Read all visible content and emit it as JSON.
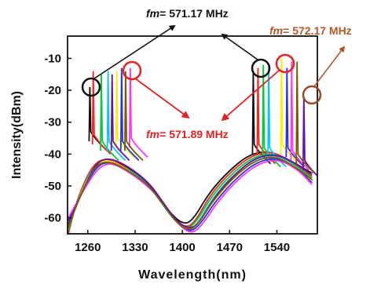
{
  "chart_data": {
    "type": "line",
    "xlabel": "Wavelength(nm)",
    "ylabel": "Intensity(dBm)",
    "xlim": [
      1230,
      1600
    ],
    "ylim": [
      -65,
      -3
    ],
    "xticks": [
      1260,
      1330,
      1400,
      1470,
      1540
    ],
    "yticks": [
      -10,
      -20,
      -30,
      -40,
      -50,
      -60
    ],
    "grid": false,
    "legend": "none",
    "series": [
      {
        "color": "#111111",
        "base_points": [
          [
            1231,
            -65
          ],
          [
            1240,
            -57
          ],
          [
            1260,
            -46
          ],
          [
            1280,
            -41.5
          ],
          [
            1310,
            -43
          ],
          [
            1340,
            -47
          ],
          [
            1360,
            -52
          ],
          [
            1380,
            -58
          ],
          [
            1400,
            -62
          ],
          [
            1415,
            -61
          ],
          [
            1440,
            -52
          ],
          [
            1470,
            -45
          ],
          [
            1500,
            -40
          ],
          [
            1530,
            -39
          ],
          [
            1560,
            -42
          ],
          [
            1592,
            -46
          ]
        ],
        "spikes": [
          [
            1263,
            -19,
            -36
          ],
          [
            1505,
            -14,
            -40
          ]
        ]
      },
      {
        "color": "#ff2020",
        "base_points": [
          [
            1231,
            -65
          ],
          [
            1242,
            -56
          ],
          [
            1262,
            -45
          ],
          [
            1282,
            -41
          ],
          [
            1312,
            -43.5
          ],
          [
            1342,
            -48
          ],
          [
            1362,
            -53
          ],
          [
            1382,
            -59
          ],
          [
            1402,
            -63
          ],
          [
            1417,
            -62
          ],
          [
            1442,
            -52.5
          ],
          [
            1472,
            -45.5
          ],
          [
            1502,
            -40.5
          ],
          [
            1532,
            -39
          ],
          [
            1562,
            -42.5
          ],
          [
            1592,
            -47
          ]
        ],
        "spikes": [
          [
            1268,
            -14,
            -37
          ],
          [
            1512,
            -13,
            -40
          ]
        ]
      },
      {
        "color": "#00cc33",
        "base_points": [
          [
            1231,
            -64
          ],
          [
            1244,
            -55
          ],
          [
            1265,
            -44.5
          ],
          [
            1285,
            -42
          ],
          [
            1315,
            -44
          ],
          [
            1345,
            -48.5
          ],
          [
            1365,
            -54
          ],
          [
            1385,
            -60
          ],
          [
            1404,
            -63.5
          ],
          [
            1419,
            -62
          ],
          [
            1444,
            -53
          ],
          [
            1474,
            -46
          ],
          [
            1504,
            -41
          ],
          [
            1534,
            -39.5
          ],
          [
            1564,
            -43
          ],
          [
            1592,
            -47.5
          ]
        ],
        "spikes": [
          [
            1280,
            -15,
            -39
          ],
          [
            1520,
            -12,
            -41
          ]
        ]
      },
      {
        "color": "#00c8ff",
        "base_points": [
          [
            1231,
            -63
          ],
          [
            1246,
            -54
          ],
          [
            1267,
            -44
          ],
          [
            1287,
            -42.5
          ],
          [
            1317,
            -44.5
          ],
          [
            1347,
            -49
          ],
          [
            1367,
            -54.5
          ],
          [
            1387,
            -60.5
          ],
          [
            1406,
            -64
          ],
          [
            1421,
            -62.5
          ],
          [
            1446,
            -53.5
          ],
          [
            1476,
            -46.5
          ],
          [
            1506,
            -41.5
          ],
          [
            1536,
            -40
          ],
          [
            1566,
            -43.5
          ],
          [
            1592,
            -48
          ]
        ],
        "spikes": [
          [
            1290,
            -14,
            -39
          ],
          [
            1528,
            -12,
            -41
          ]
        ]
      },
      {
        "color": "#ffee00",
        "base_points": [
          [
            1231,
            -62
          ],
          [
            1248,
            -53
          ],
          [
            1270,
            -43.5
          ],
          [
            1290,
            -41.5
          ],
          [
            1320,
            -45
          ],
          [
            1350,
            -50
          ],
          [
            1370,
            -55
          ],
          [
            1390,
            -61
          ],
          [
            1408,
            -64
          ],
          [
            1423,
            -62
          ],
          [
            1448,
            -54
          ],
          [
            1478,
            -47
          ],
          [
            1508,
            -42
          ],
          [
            1538,
            -40.5
          ],
          [
            1568,
            -44
          ],
          [
            1592,
            -48.5
          ]
        ],
        "spikes": [
          [
            1303,
            -14,
            -38
          ],
          [
            1547,
            -10,
            -40
          ]
        ]
      },
      {
        "color": "#2233ee",
        "base_points": [
          [
            1231,
            -61
          ],
          [
            1250,
            -52.5
          ],
          [
            1272,
            -44
          ],
          [
            1292,
            -42
          ],
          [
            1322,
            -45.5
          ],
          [
            1352,
            -50.5
          ],
          [
            1372,
            -55.5
          ],
          [
            1392,
            -61.5
          ],
          [
            1410,
            -64.5
          ],
          [
            1425,
            -62.5
          ],
          [
            1450,
            -54.5
          ],
          [
            1480,
            -47.5
          ],
          [
            1510,
            -42.5
          ],
          [
            1540,
            -41
          ],
          [
            1570,
            -44.5
          ],
          [
            1592,
            -49
          ]
        ],
        "spikes": [
          [
            1310,
            -13,
            -39
          ],
          [
            1555,
            -13,
            -41
          ]
        ]
      },
      {
        "color": "#ff33ff",
        "base_points": [
          [
            1231,
            -60
          ],
          [
            1252,
            -52
          ],
          [
            1274,
            -44.5
          ],
          [
            1294,
            -42.5
          ],
          [
            1324,
            -46
          ],
          [
            1354,
            -51
          ],
          [
            1374,
            -56
          ],
          [
            1394,
            -62
          ],
          [
            1412,
            -65
          ],
          [
            1427,
            -63
          ],
          [
            1452,
            -55
          ],
          [
            1482,
            -48
          ],
          [
            1512,
            -43
          ],
          [
            1542,
            -41.5
          ],
          [
            1572,
            -45
          ],
          [
            1592,
            -49.5
          ]
        ],
        "spikes": [
          [
            1323,
            -13,
            -38
          ],
          [
            1562,
            -11,
            -42
          ]
        ]
      },
      {
        "color": "#6a0dad",
        "base_points": [
          [
            1231,
            -62
          ],
          [
            1249,
            -53
          ],
          [
            1271,
            -43
          ],
          [
            1291,
            -41
          ],
          [
            1321,
            -44
          ],
          [
            1351,
            -49
          ],
          [
            1371,
            -55
          ],
          [
            1391,
            -61
          ],
          [
            1409,
            -63.5
          ],
          [
            1424,
            -62
          ],
          [
            1449,
            -53
          ],
          [
            1479,
            -46
          ],
          [
            1509,
            -41
          ],
          [
            1539,
            -40
          ],
          [
            1569,
            -43
          ],
          [
            1592,
            -46.5
          ]
        ],
        "spikes": [
          [
            1296,
            -15,
            -39
          ],
          [
            1580,
            -22,
            -45
          ]
        ]
      },
      {
        "color": "#7a5a00",
        "base_points": [
          [
            1231,
            -63
          ],
          [
            1247,
            -54
          ],
          [
            1269,
            -44
          ],
          [
            1289,
            -42
          ],
          [
            1319,
            -45
          ],
          [
            1349,
            -49.5
          ],
          [
            1369,
            -55
          ],
          [
            1389,
            -61
          ],
          [
            1407,
            -64
          ],
          [
            1422,
            -62.5
          ],
          [
            1447,
            -54
          ],
          [
            1477,
            -47
          ],
          [
            1507,
            -42
          ],
          [
            1537,
            -40.5
          ],
          [
            1567,
            -44
          ],
          [
            1592,
            -48
          ]
        ],
        "spikes": [
          [
            1316,
            -14,
            -39
          ],
          [
            1570,
            -11,
            -43
          ]
        ]
      }
    ],
    "annotations": [
      {
        "label": "fm",
        "text": "= 571.17 MHz",
        "color": "#111111"
      },
      {
        "label": "fm",
        "text": "= 571.89 MHz",
        "color": "#e8201f"
      },
      {
        "label": "fm",
        "text": "= 572.17 MHz",
        "color": "#b0582a"
      }
    ]
  }
}
